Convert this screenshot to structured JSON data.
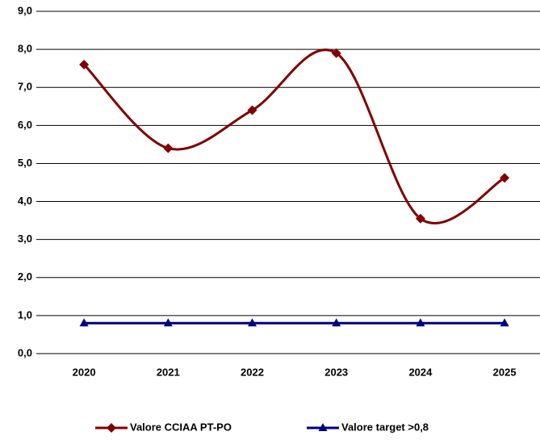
{
  "chart_data": {
    "type": "line",
    "categories": [
      "2020",
      "2021",
      "2022",
      "2023",
      "2024",
      "2025"
    ],
    "series": [
      {
        "name": "Valore CCIAA PT-PO",
        "color": "#800000",
        "values": [
          7.6,
          5.4,
          6.4,
          7.9,
          3.55,
          4.62
        ]
      },
      {
        "name": "Valore target >0,8",
        "color": "#000080",
        "values": [
          0.8,
          0.8,
          0.8,
          0.8,
          0.8,
          0.8
        ]
      }
    ],
    "ylim": [
      0,
      9
    ],
    "yticks": [
      {
        "value": 0,
        "label": "0,0"
      },
      {
        "value": 1,
        "label": "1,0"
      },
      {
        "value": 2,
        "label": "2,0"
      },
      {
        "value": 3,
        "label": "3,0"
      },
      {
        "value": 4,
        "label": "4,0"
      },
      {
        "value": 5,
        "label": "5,0"
      },
      {
        "value": 6,
        "label": "6,0"
      },
      {
        "value": 7,
        "label": "7,0"
      },
      {
        "value": 8,
        "label": "8,0"
      },
      {
        "value": 9,
        "label": "9,0"
      }
    ],
    "grid": true,
    "smooth": true,
    "legend": "bottom"
  }
}
